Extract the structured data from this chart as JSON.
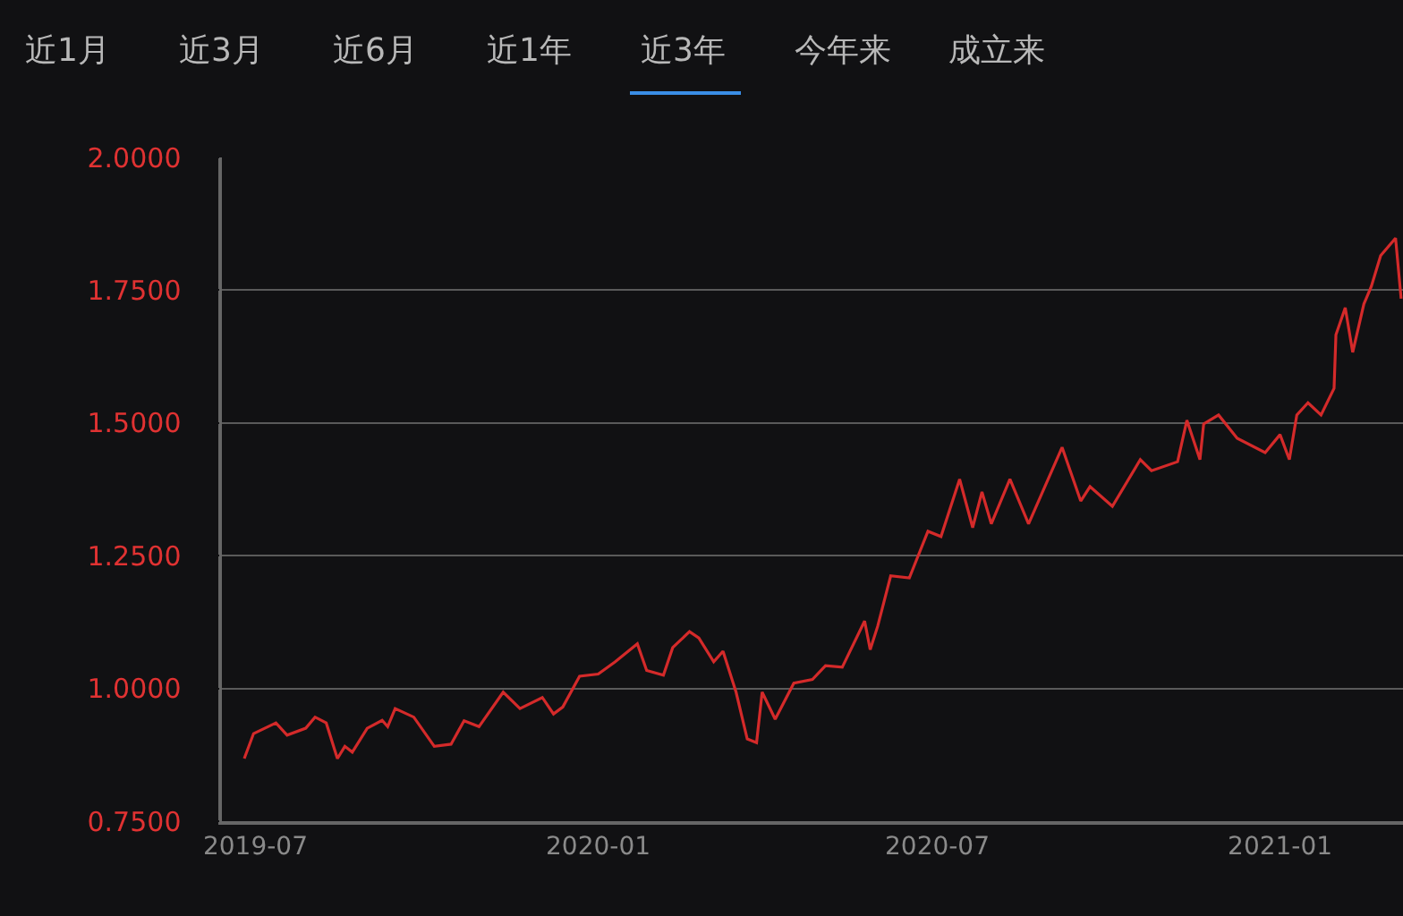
{
  "chart_data": {
    "type": "line",
    "annotations": [
      "近1月",
      "近3月",
      "近6月",
      "近1年",
      "近3年",
      "今年来",
      "成立来"
    ],
    "x": [
      "2019-06-25",
      "2019-06-30",
      "2019-07-12",
      "2019-07-18",
      "2019-07-28",
      "2019-08-02",
      "2019-08-08",
      "2019-08-14",
      "2019-08-18",
      "2019-08-22",
      "2019-08-30",
      "2019-09-07",
      "2019-09-10",
      "2019-09-14",
      "2019-09-24",
      "2019-10-05",
      "2019-10-14",
      "2019-10-21",
      "2019-10-29",
      "2019-11-11",
      "2019-11-20",
      "2019-12-02",
      "2019-12-08",
      "2019-12-13",
      "2019-12-22",
      "2020-01-01",
      "2020-01-10",
      "2020-01-22",
      "2020-01-27",
      "2020-02-05",
      "2020-02-10",
      "2020-02-19",
      "2020-02-24",
      "2020-03-03",
      "2020-03-08",
      "2020-03-15",
      "2020-03-21",
      "2020-03-26",
      "2020-03-29",
      "2020-04-05",
      "2020-04-15",
      "2020-04-25",
      "2020-05-02",
      "2020-05-11",
      "2020-05-23",
      "2020-05-26",
      "2020-05-30",
      "2020-06-06",
      "2020-06-16",
      "2020-06-26",
      "2020-07-03",
      "2020-07-13",
      "2020-07-20",
      "2020-07-25",
      "2020-07-30",
      "2020-08-09",
      "2020-08-19",
      "2020-09-06",
      "2020-09-16",
      "2020-09-21",
      "2020-10-03",
      "2020-10-18",
      "2020-10-24",
      "2020-11-07",
      "2020-11-12",
      "2020-11-19",
      "2020-11-21",
      "2020-11-29",
      "2020-12-09",
      "2020-12-24",
      "2021-01-01",
      "2021-01-06",
      "2021-01-10",
      "2021-01-16",
      "2021-01-23",
      "2021-01-30",
      "2021-01-31",
      "2021-02-05",
      "2021-02-09",
      "2021-02-15",
      "2021-02-19",
      "2021-02-24",
      "2021-03-04",
      "2021-03-07"
    ],
    "series": [
      {
        "color": "#d42a2a",
        "values": [
          0.868,
          0.915,
          0.935,
          0.912,
          0.925,
          0.946,
          0.935,
          0.868,
          0.891,
          0.88,
          0.925,
          0.94,
          0.928,
          0.962,
          0.946,
          0.891,
          0.895,
          0.939,
          0.928,
          0.993,
          0.962,
          0.983,
          0.952,
          0.965,
          1.023,
          1.027,
          1.05,
          1.084,
          1.034,
          1.025,
          1.077,
          1.107,
          1.095,
          1.05,
          1.07,
          0.993,
          0.905,
          0.898,
          0.993,
          0.942,
          1.01,
          1.017,
          1.043,
          1.04,
          1.127,
          1.073,
          1.117,
          1.212,
          1.208,
          1.296,
          1.286,
          1.394,
          1.303,
          1.37,
          1.31,
          1.394,
          1.31,
          1.454,
          1.353,
          1.38,
          1.343,
          1.431,
          1.41,
          1.427,
          1.505,
          1.431,
          1.498,
          1.515,
          1.471,
          1.444,
          1.478,
          1.431,
          1.515,
          1.538,
          1.515,
          1.565,
          1.666,
          1.717,
          1.633,
          1.724,
          1.757,
          1.815,
          1.848,
          1.734
        ]
      }
    ],
    "xlim": [
      "2019-06-13",
      "2021-03-08"
    ],
    "xticks": [
      "2019-07",
      "2020-01",
      "2020-07",
      "2021-01"
    ],
    "ylim": [
      0.75,
      2.0
    ],
    "yticks": [
      {
        "value": 0.75,
        "label": "0.7500"
      },
      {
        "value": 1.0,
        "label": "1.0000"
      },
      {
        "value": 1.25,
        "label": "1.2500"
      },
      {
        "value": 1.5,
        "label": "1.5000"
      },
      {
        "value": 1.75,
        "label": "1.7500"
      },
      {
        "value": 2.0,
        "label": "2.0000"
      }
    ],
    "grid": "y",
    "legend": false,
    "marker": "none",
    "line_style": "solid"
  }
}
